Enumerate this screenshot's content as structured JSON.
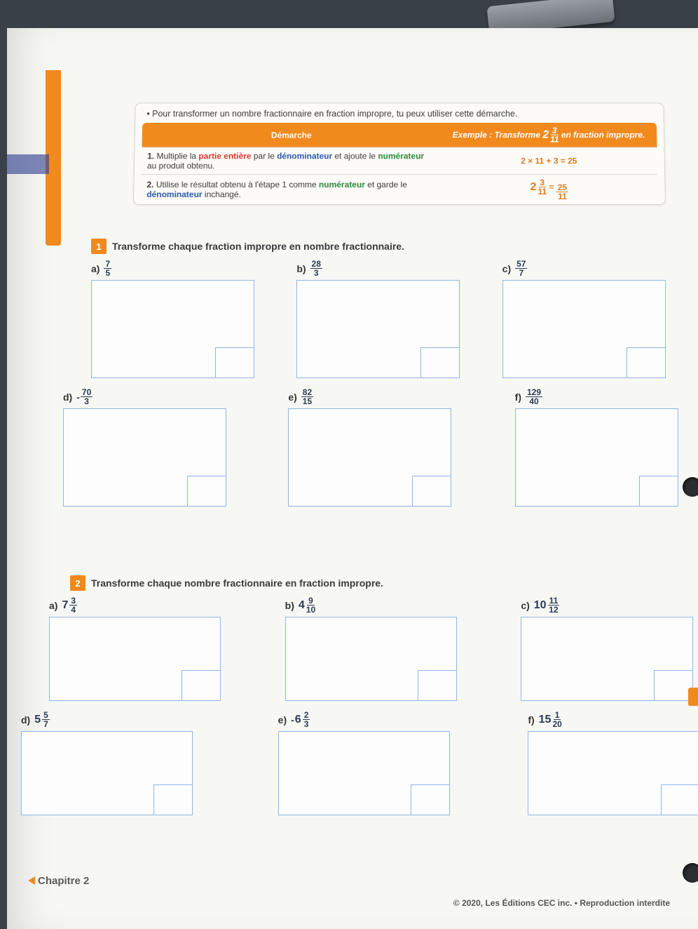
{
  "colors": {
    "accent_orange": "#f08a1d",
    "box_border": "#8fb7e6",
    "paper_bg": "#f7f7f4",
    "desk_bg": "#3a4048",
    "kw_red": "#d83a2b",
    "kw_green": "#2a8a3a",
    "kw_blue": "#2a5aaa",
    "text": "#3a3a3a"
  },
  "intro_bullet": "Pour transformer un nombre fractionnaire en fraction impropre, tu peux utiliser cette démarche.",
  "table": {
    "head_left": "Démarche",
    "head_right_prefix": "Exemple : Transforme ",
    "head_right_mixed": {
      "whole": "2",
      "num": "3",
      "den": "11"
    },
    "head_right_suffix": " en fraction impropre.",
    "rows": [
      {
        "left_num": "1.",
        "left_html": "Multiplie la <partie entière> par le <dénominateur> et ajoute le <numérateur> au produit obtenu.",
        "left_parts": [
          {
            "t": "Multiplie la "
          },
          {
            "t": "partie entière",
            "cls": "kw-red"
          },
          {
            "t": " par le "
          },
          {
            "t": "dénominateur",
            "cls": "kw-blue"
          },
          {
            "t": " et ajoute le "
          },
          {
            "t": "numérateur",
            "cls": "kw-green"
          },
          {
            "t": " au produit obtenu."
          }
        ],
        "right": "2 × 11 + 3 = 25"
      },
      {
        "left_num": "2.",
        "left_parts": [
          {
            "t": "Utilise le résultat obtenu à l'"
          },
          {
            "t": "étape 1",
            "cls": ""
          },
          {
            "t": " comme "
          },
          {
            "t": "numérateur",
            "cls": "kw-green"
          },
          {
            "t": " et garde le "
          },
          {
            "t": "dénominateur",
            "cls": "kw-blue"
          },
          {
            "t": " inchangé."
          }
        ],
        "right_mixed": {
          "whole": "2",
          "num": "3",
          "den": "11"
        },
        "right_eq": "=",
        "right_frac": {
          "num": "25",
          "den": "11"
        }
      }
    ]
  },
  "ex1": {
    "num": "1",
    "title": "Transforme chaque fraction impropre en nombre fractionnaire.",
    "items": [
      {
        "letter": "a)",
        "frac": {
          "num": "7",
          "den": "5"
        }
      },
      {
        "letter": "b)",
        "frac": {
          "num": "28",
          "den": "3"
        }
      },
      {
        "letter": "c)",
        "frac": {
          "num": "57",
          "den": "7"
        }
      },
      {
        "letter": "d)",
        "neg": true,
        "frac": {
          "num": "70",
          "den": "3"
        }
      },
      {
        "letter": "e)",
        "frac": {
          "num": "82",
          "den": "15"
        }
      },
      {
        "letter": "f)",
        "frac": {
          "num": "129",
          "den": "40"
        }
      }
    ]
  },
  "ex2": {
    "num": "2",
    "title": "Transforme chaque nombre fractionnaire en fraction impropre.",
    "items": [
      {
        "letter": "a)",
        "mixed": {
          "whole": "7",
          "num": "3",
          "den": "4"
        }
      },
      {
        "letter": "b)",
        "mixed": {
          "whole": "4",
          "num": "9",
          "den": "10"
        }
      },
      {
        "letter": "c)",
        "mixed": {
          "whole": "10",
          "num": "11",
          "den": "12"
        }
      },
      {
        "letter": "d)",
        "mixed": {
          "whole": "5",
          "num": "5",
          "den": "7"
        }
      },
      {
        "letter": "e)",
        "neg": true,
        "mixed": {
          "whole": "6",
          "num": "2",
          "den": "3"
        }
      },
      {
        "letter": "f)",
        "mixed": {
          "whole": "15",
          "num": "1",
          "den": "20"
        }
      }
    ]
  },
  "chapter": "Chapitre 2",
  "copyright": "© 2020, Les Éditions CEC inc. • Reproduction interdite"
}
